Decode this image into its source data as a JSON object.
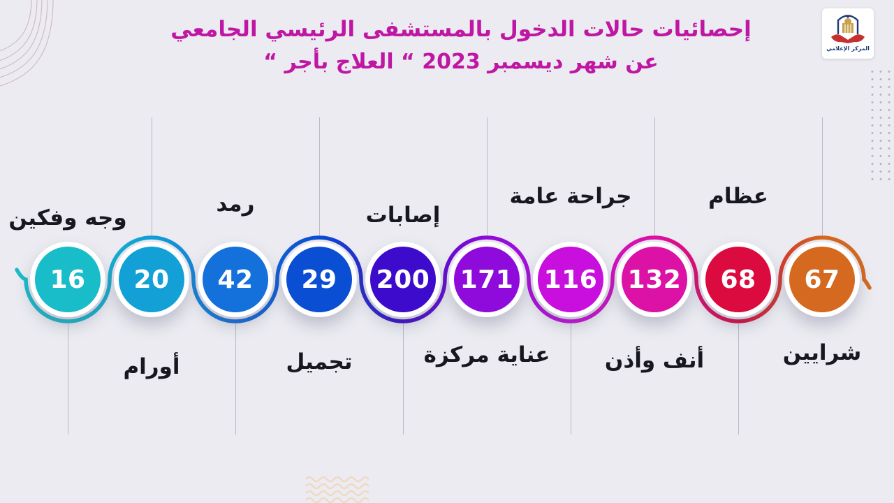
{
  "title": {
    "line1": "إحصائيات حالات الدخول بالمستشفى الرئيسي الجامعي",
    "line2": "عن شهر ديسمبر  2023 “ العلاج بأجر “",
    "color": "#BF16A3"
  },
  "logo": {
    "caption": "المركز الإعلامي"
  },
  "chart_data": {
    "type": "bar",
    "variant": "snake-timeline-infographic",
    "title": "إحصائيات حالات الدخول بالمستشفى الرئيسي الجامعي عن شهر ديسمبر 2023 “ العلاج بأجر “",
    "categories": [
      "وجه وفكين",
      "أورام",
      "رمد",
      "تجميل",
      "إصابات",
      "عناية مركزة",
      "جراحة عامة",
      "أنف وأذن",
      "عظام",
      "شرايين"
    ],
    "values": [
      16,
      20,
      42,
      29,
      200,
      171,
      116,
      132,
      68,
      67
    ],
    "items": [
      {
        "label": "وجه وفكين",
        "value": "16",
        "color": "#19BCC9",
        "label_pos": "top"
      },
      {
        "label": "أورام",
        "value": "20",
        "color": "#12A0D6",
        "label_pos": "bottom"
      },
      {
        "label": "رمد",
        "value": "42",
        "color": "#1470DB",
        "label_pos": "top"
      },
      {
        "label": "تجميل",
        "value": "29",
        "color": "#0A4FD3",
        "label_pos": "bottom"
      },
      {
        "label": "إصابات",
        "value": "200",
        "color": "#3D0BCB",
        "label_pos": "top"
      },
      {
        "label": "عناية مركزة",
        "value": "171",
        "color": "#8E0BDB",
        "label_pos": "bottom"
      },
      {
        "label": "جراحة عامة",
        "value": "116",
        "color": "#C90FDE",
        "label_pos": "top"
      },
      {
        "label": "أنف وأذن",
        "value": "132",
        "color": "#DC12A6",
        "label_pos": "bottom"
      },
      {
        "label": "عظام",
        "value": "68",
        "color": "#DC0B3F",
        "label_pos": "top"
      },
      {
        "label": "شرايين",
        "value": "67",
        "color": "#D4691F",
        "label_pos": "bottom"
      }
    ],
    "legend": "none",
    "grid": "off",
    "background": "#EBEBF1",
    "value_text_color": "#FFFFFF",
    "label_text_color": "#17171F"
  }
}
